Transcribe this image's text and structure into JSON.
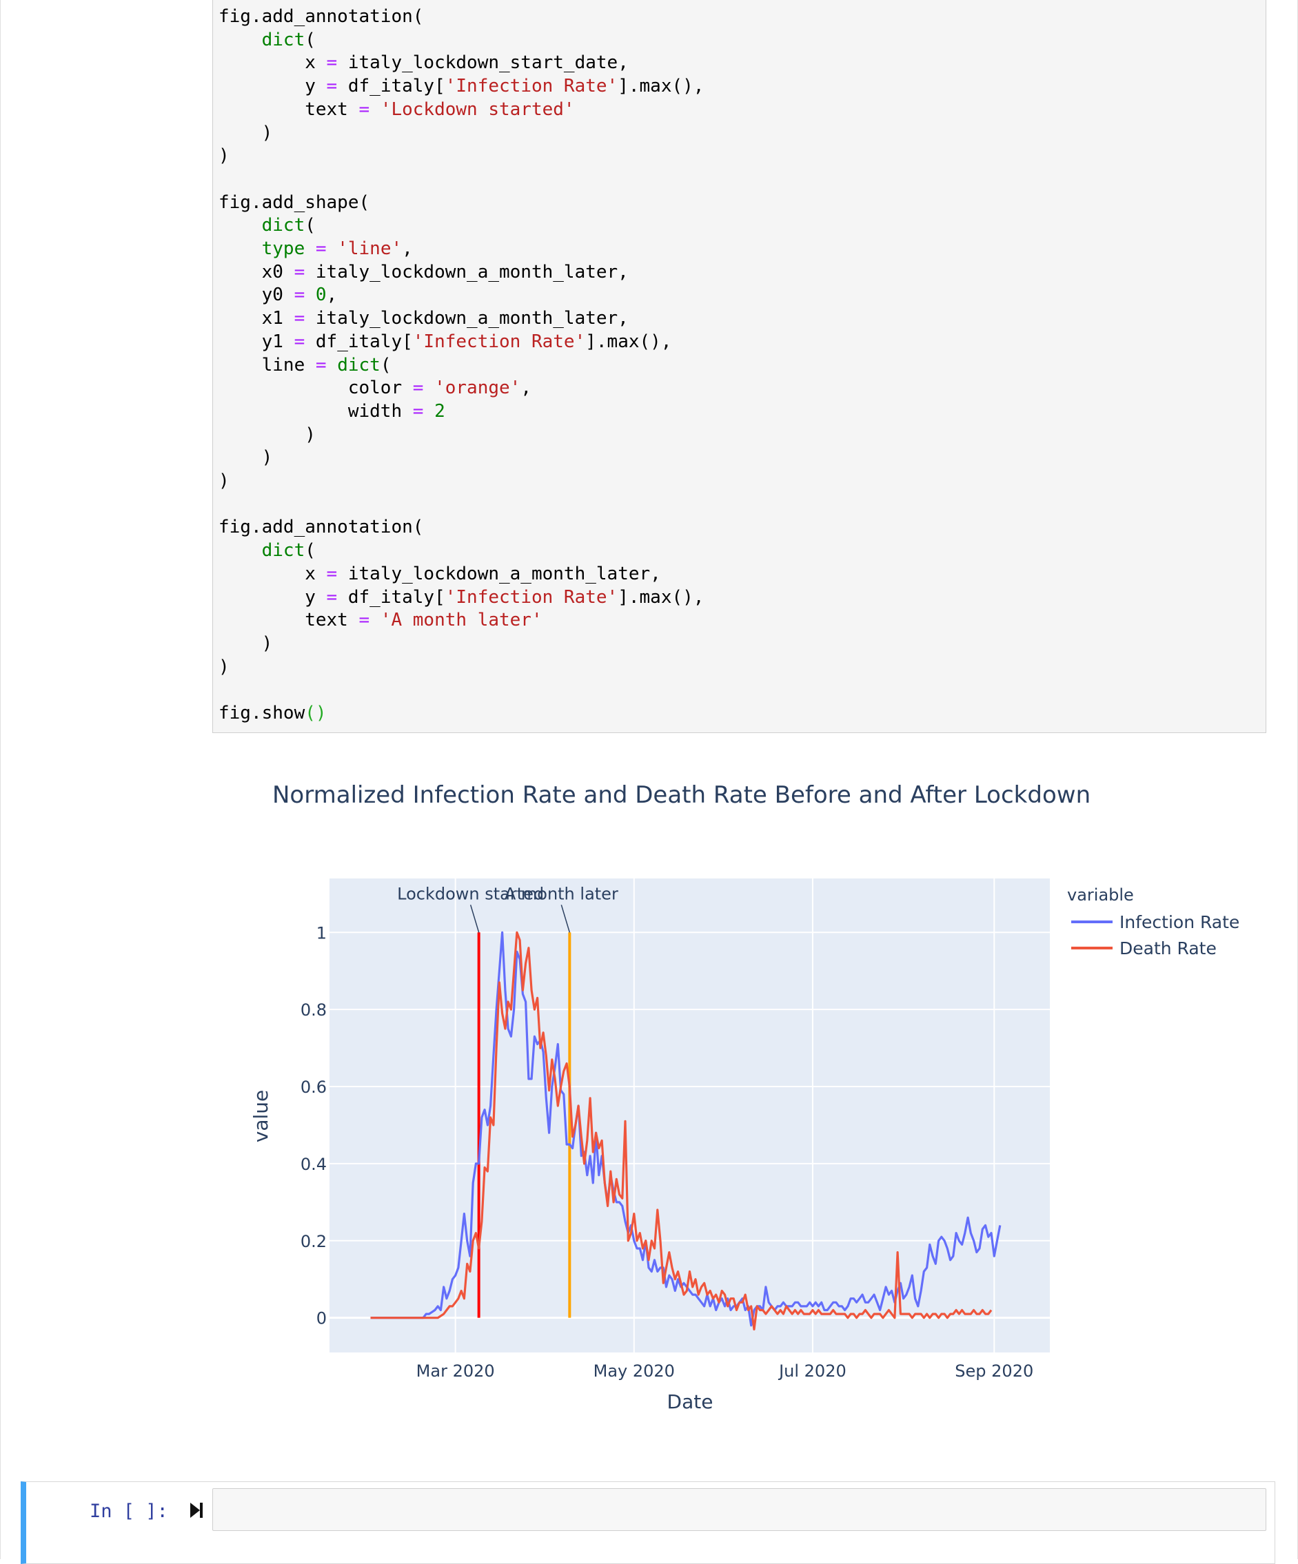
{
  "notebook": {
    "code_lines": [
      [
        [
          "p",
          "fig.add_annotation("
        ]
      ],
      [
        [
          "p",
          "    "
        ],
        [
          "k",
          "dict"
        ],
        [
          "p",
          "("
        ]
      ],
      [
        [
          "p",
          "        x "
        ],
        [
          "o",
          "="
        ],
        [
          "p",
          " italy_lockdown_start_date,"
        ]
      ],
      [
        [
          "p",
          "        y "
        ],
        [
          "o",
          "="
        ],
        [
          "p",
          " df_italy["
        ],
        [
          "s",
          "'Infection Rate'"
        ],
        [
          "p",
          "].max(),"
        ]
      ],
      [
        [
          "p",
          "        text "
        ],
        [
          "o",
          "="
        ],
        [
          "p",
          " "
        ],
        [
          "s",
          "'Lockdown started'"
        ]
      ],
      [
        [
          "p",
          "    )"
        ]
      ],
      [
        [
          "p",
          ")"
        ]
      ],
      [
        [
          "p",
          ""
        ]
      ],
      [
        [
          "p",
          "fig.add_shape("
        ]
      ],
      [
        [
          "p",
          "    "
        ],
        [
          "k",
          "dict"
        ],
        [
          "p",
          "("
        ]
      ],
      [
        [
          "p",
          "    "
        ],
        [
          "k",
          "type"
        ],
        [
          "p",
          " "
        ],
        [
          "o",
          "="
        ],
        [
          "p",
          " "
        ],
        [
          "s",
          "'line'"
        ],
        [
          "p",
          ","
        ]
      ],
      [
        [
          "p",
          "    x0 "
        ],
        [
          "o",
          "="
        ],
        [
          "p",
          " italy_lockdown_a_month_later,"
        ]
      ],
      [
        [
          "p",
          "    y0 "
        ],
        [
          "o",
          "="
        ],
        [
          "p",
          " "
        ],
        [
          "n",
          "0"
        ],
        [
          "p",
          ","
        ]
      ],
      [
        [
          "p",
          "    x1 "
        ],
        [
          "o",
          "="
        ],
        [
          "p",
          " italy_lockdown_a_month_later,"
        ]
      ],
      [
        [
          "p",
          "    y1 "
        ],
        [
          "o",
          "="
        ],
        [
          "p",
          " df_italy["
        ],
        [
          "s",
          "'Infection Rate'"
        ],
        [
          "p",
          "].max(),"
        ]
      ],
      [
        [
          "p",
          "    line "
        ],
        [
          "o",
          "="
        ],
        [
          "p",
          " "
        ],
        [
          "k",
          "dict"
        ],
        [
          "p",
          "("
        ]
      ],
      [
        [
          "p",
          "            color "
        ],
        [
          "o",
          "="
        ],
        [
          "p",
          " "
        ],
        [
          "s",
          "'orange'"
        ],
        [
          "p",
          ","
        ]
      ],
      [
        [
          "p",
          "            width "
        ],
        [
          "o",
          "="
        ],
        [
          "p",
          " "
        ],
        [
          "n",
          "2"
        ]
      ],
      [
        [
          "p",
          "        )"
        ]
      ],
      [
        [
          "p",
          "    )"
        ]
      ],
      [
        [
          "p",
          ")"
        ]
      ],
      [
        [
          "p",
          ""
        ]
      ],
      [
        [
          "p",
          "fig.add_annotation("
        ]
      ],
      [
        [
          "p",
          "    "
        ],
        [
          "k",
          "dict"
        ],
        [
          "p",
          "("
        ]
      ],
      [
        [
          "p",
          "        x "
        ],
        [
          "o",
          "="
        ],
        [
          "p",
          " italy_lockdown_a_month_later,"
        ]
      ],
      [
        [
          "p",
          "        y "
        ],
        [
          "o",
          "="
        ],
        [
          "p",
          " df_italy["
        ],
        [
          "s",
          "'Infection Rate'"
        ],
        [
          "p",
          "].max(),"
        ]
      ],
      [
        [
          "p",
          "        text "
        ],
        [
          "o",
          "="
        ],
        [
          "p",
          " "
        ],
        [
          "s",
          "'A month later'"
        ]
      ],
      [
        [
          "p",
          "    )"
        ]
      ],
      [
        [
          "p",
          ")"
        ]
      ],
      [
        [
          "p",
          ""
        ]
      ],
      [
        [
          "p",
          "fig.show"
        ],
        [
          "pg",
          "()"
        ]
      ]
    ],
    "input_prompt": "In [ ]:"
  },
  "chart_data": {
    "type": "line",
    "title": "Normalized Infection Rate and Death Rate Before and After Lockdown",
    "xlabel": "Date",
    "ylabel": "value",
    "x_ticks": [
      "Mar 2020",
      "May 2020",
      "Jul 2020",
      "Sep 2020"
    ],
    "y_ticks": [
      "0",
      "0.2",
      "0.4",
      "0.6",
      "0.8",
      "1"
    ],
    "ylim": [
      -0.09,
      1.14
    ],
    "legend_title": "variable",
    "legend_position": "right",
    "grid": true,
    "colors": {
      "Infection Rate": "#636efa",
      "Death Rate": "#ef553b",
      "lockdown_line": "#ff0000",
      "month_later_line": "#ffa500",
      "plot_bg": "#e5ecf6"
    },
    "annotations": [
      {
        "text": "Lockdown started",
        "x": "2020-03-09",
        "y": 1
      },
      {
        "text": "A month later",
        "x": "2020-04-09",
        "y": 1
      }
    ],
    "shapes": [
      {
        "type": "line",
        "x": "2020-03-09",
        "y0": 0,
        "y1": 1,
        "color": "red"
      },
      {
        "type": "line",
        "x": "2020-04-09",
        "y0": 0,
        "y1": 1,
        "color": "orange"
      }
    ],
    "series": [
      {
        "name": "Infection Rate",
        "start_date": "2020-02-01",
        "values": [
          0,
          0,
          0,
          0,
          0,
          0,
          0,
          0,
          0,
          0,
          0,
          0,
          0,
          0,
          0,
          0,
          0,
          0,
          0,
          0.01,
          0.01,
          0.015,
          0.02,
          0.03,
          0.02,
          0.08,
          0.05,
          0.07,
          0.1,
          0.11,
          0.13,
          0.2,
          0.27,
          0.2,
          0.16,
          0.35,
          0.4,
          0.4,
          0.52,
          0.54,
          0.5,
          0.55,
          0.68,
          0.8,
          0.9,
          1.0,
          0.85,
          0.75,
          0.73,
          0.8,
          0.95,
          0.93,
          0.84,
          0.82,
          0.62,
          0.62,
          0.73,
          0.71,
          0.72,
          0.69,
          0.57,
          0.48,
          0.6,
          0.65,
          0.71,
          0.59,
          0.58,
          0.45,
          0.45,
          0.44,
          0.5,
          0.55,
          0.42,
          0.43,
          0.37,
          0.42,
          0.35,
          0.48,
          0.37,
          0.42,
          0.35,
          0.3,
          0.37,
          0.33,
          0.3,
          0.3,
          0.29,
          0.25,
          0.22,
          0.24,
          0.2,
          0.18,
          0.18,
          0.15,
          0.2,
          0.13,
          0.12,
          0.15,
          0.12,
          0.13,
          0.13,
          0.08,
          0.11,
          0.1,
          0.07,
          0.1,
          0.08,
          0.09,
          0.08,
          0.07,
          0.06,
          0.06,
          0.05,
          0.04,
          0.03,
          0.06,
          0.03,
          0.05,
          0.02,
          0.04,
          0.05,
          0.03,
          0.05,
          0.02,
          0.03,
          0.03,
          0.04,
          0.05,
          0.02,
          0.03,
          -0.02,
          0.02,
          0.03,
          0.03,
          0.02,
          0.08,
          0.04,
          0.03,
          0.02,
          0.03,
          0.03,
          0.04,
          0.03,
          0.03,
          0.03,
          0.04,
          0.04,
          0.03,
          0.03,
          0.03,
          0.04,
          0.03,
          0.04,
          0.03,
          0.04,
          0.02,
          0.02,
          0.03,
          0.04,
          0.04,
          0.03,
          0.03,
          0.02,
          0.03,
          0.05,
          0.05,
          0.04,
          0.05,
          0.06,
          0.04,
          0.04,
          0.05,
          0.06,
          0.04,
          0.02,
          0.05,
          0.08,
          0.06,
          0.07,
          0.04,
          0.07,
          0.09,
          0.05,
          0.06,
          0.08,
          0.11,
          0.05,
          0.03,
          0.07,
          0.12,
          0.13,
          0.19,
          0.16,
          0.14,
          0.2,
          0.21,
          0.2,
          0.18,
          0.15,
          0.16,
          0.22,
          0.2,
          0.19,
          0.22,
          0.26,
          0.22,
          0.2,
          0.17,
          0.18,
          0.23,
          0.24,
          0.21,
          0.22,
          0.16,
          0.2,
          0.24
        ]
      },
      {
        "name": "Death Rate",
        "start_date": "2020-02-01",
        "values": [
          0,
          0,
          0,
          0,
          0,
          0,
          0,
          0,
          0,
          0,
          0,
          0,
          0,
          0,
          0,
          0,
          0,
          0,
          0,
          0,
          0,
          0,
          0,
          0,
          0.005,
          0.01,
          0.02,
          0.03,
          0.03,
          0.04,
          0.05,
          0.07,
          0.05,
          0.14,
          0.12,
          0.2,
          0.22,
          0.18,
          0.25,
          0.39,
          0.38,
          0.52,
          0.5,
          0.7,
          0.87,
          0.79,
          0.75,
          0.82,
          0.8,
          0.9,
          1.0,
          0.98,
          0.85,
          0.92,
          0.96,
          0.85,
          0.8,
          0.83,
          0.7,
          0.74,
          0.68,
          0.59,
          0.67,
          0.62,
          0.55,
          0.6,
          0.64,
          0.66,
          0.6,
          0.47,
          0.5,
          0.55,
          0.47,
          0.4,
          0.46,
          0.57,
          0.43,
          0.48,
          0.44,
          0.46,
          0.35,
          0.29,
          0.38,
          0.3,
          0.36,
          0.32,
          0.31,
          0.51,
          0.2,
          0.22,
          0.27,
          0.2,
          0.22,
          0.18,
          0.2,
          0.15,
          0.2,
          0.18,
          0.28,
          0.2,
          0.09,
          0.13,
          0.17,
          0.13,
          0.1,
          0.12,
          0.09,
          0.06,
          0.07,
          0.12,
          0.08,
          0.1,
          0.06,
          0.08,
          0.09,
          0.06,
          0.07,
          0.05,
          0.06,
          0.04,
          0.07,
          0.06,
          0.03,
          0.05,
          0.05,
          0.02,
          0.04,
          0.04,
          0.06,
          0.02,
          0.03,
          -0.03,
          0.03,
          0.02,
          0.02,
          0.01,
          0.02,
          0.03,
          0.02,
          0.01,
          0.02,
          0.01,
          0.03,
          0.02,
          0.01,
          0.02,
          0.01,
          0.02,
          0.01,
          0.01,
          0.01,
          0.02,
          0.01,
          0.02,
          0.01,
          0.01,
          0.01,
          0.01,
          0.02,
          0.01,
          0.01,
          0.01,
          0.01,
          0.0,
          0.01,
          0.01,
          0.0,
          0.01,
          0.01,
          0.02,
          0.01,
          0.0,
          0.01,
          0.01,
          0.01,
          0.0,
          0.01,
          0.02,
          0.01,
          0.0,
          0.17,
          0.01,
          0.01,
          0.01,
          0.01,
          0.0,
          0.01,
          0.01,
          0.01,
          0.0,
          0.01,
          0.0,
          0.01,
          0.01,
          0.0,
          0.01,
          0.01,
          0.0,
          0.01,
          0.01,
          0.02,
          0.01,
          0.02,
          0.01,
          0.01,
          0.01,
          0.02,
          0.01,
          0.01,
          0.02,
          0.01,
          0.01,
          0.02
        ]
      }
    ]
  }
}
